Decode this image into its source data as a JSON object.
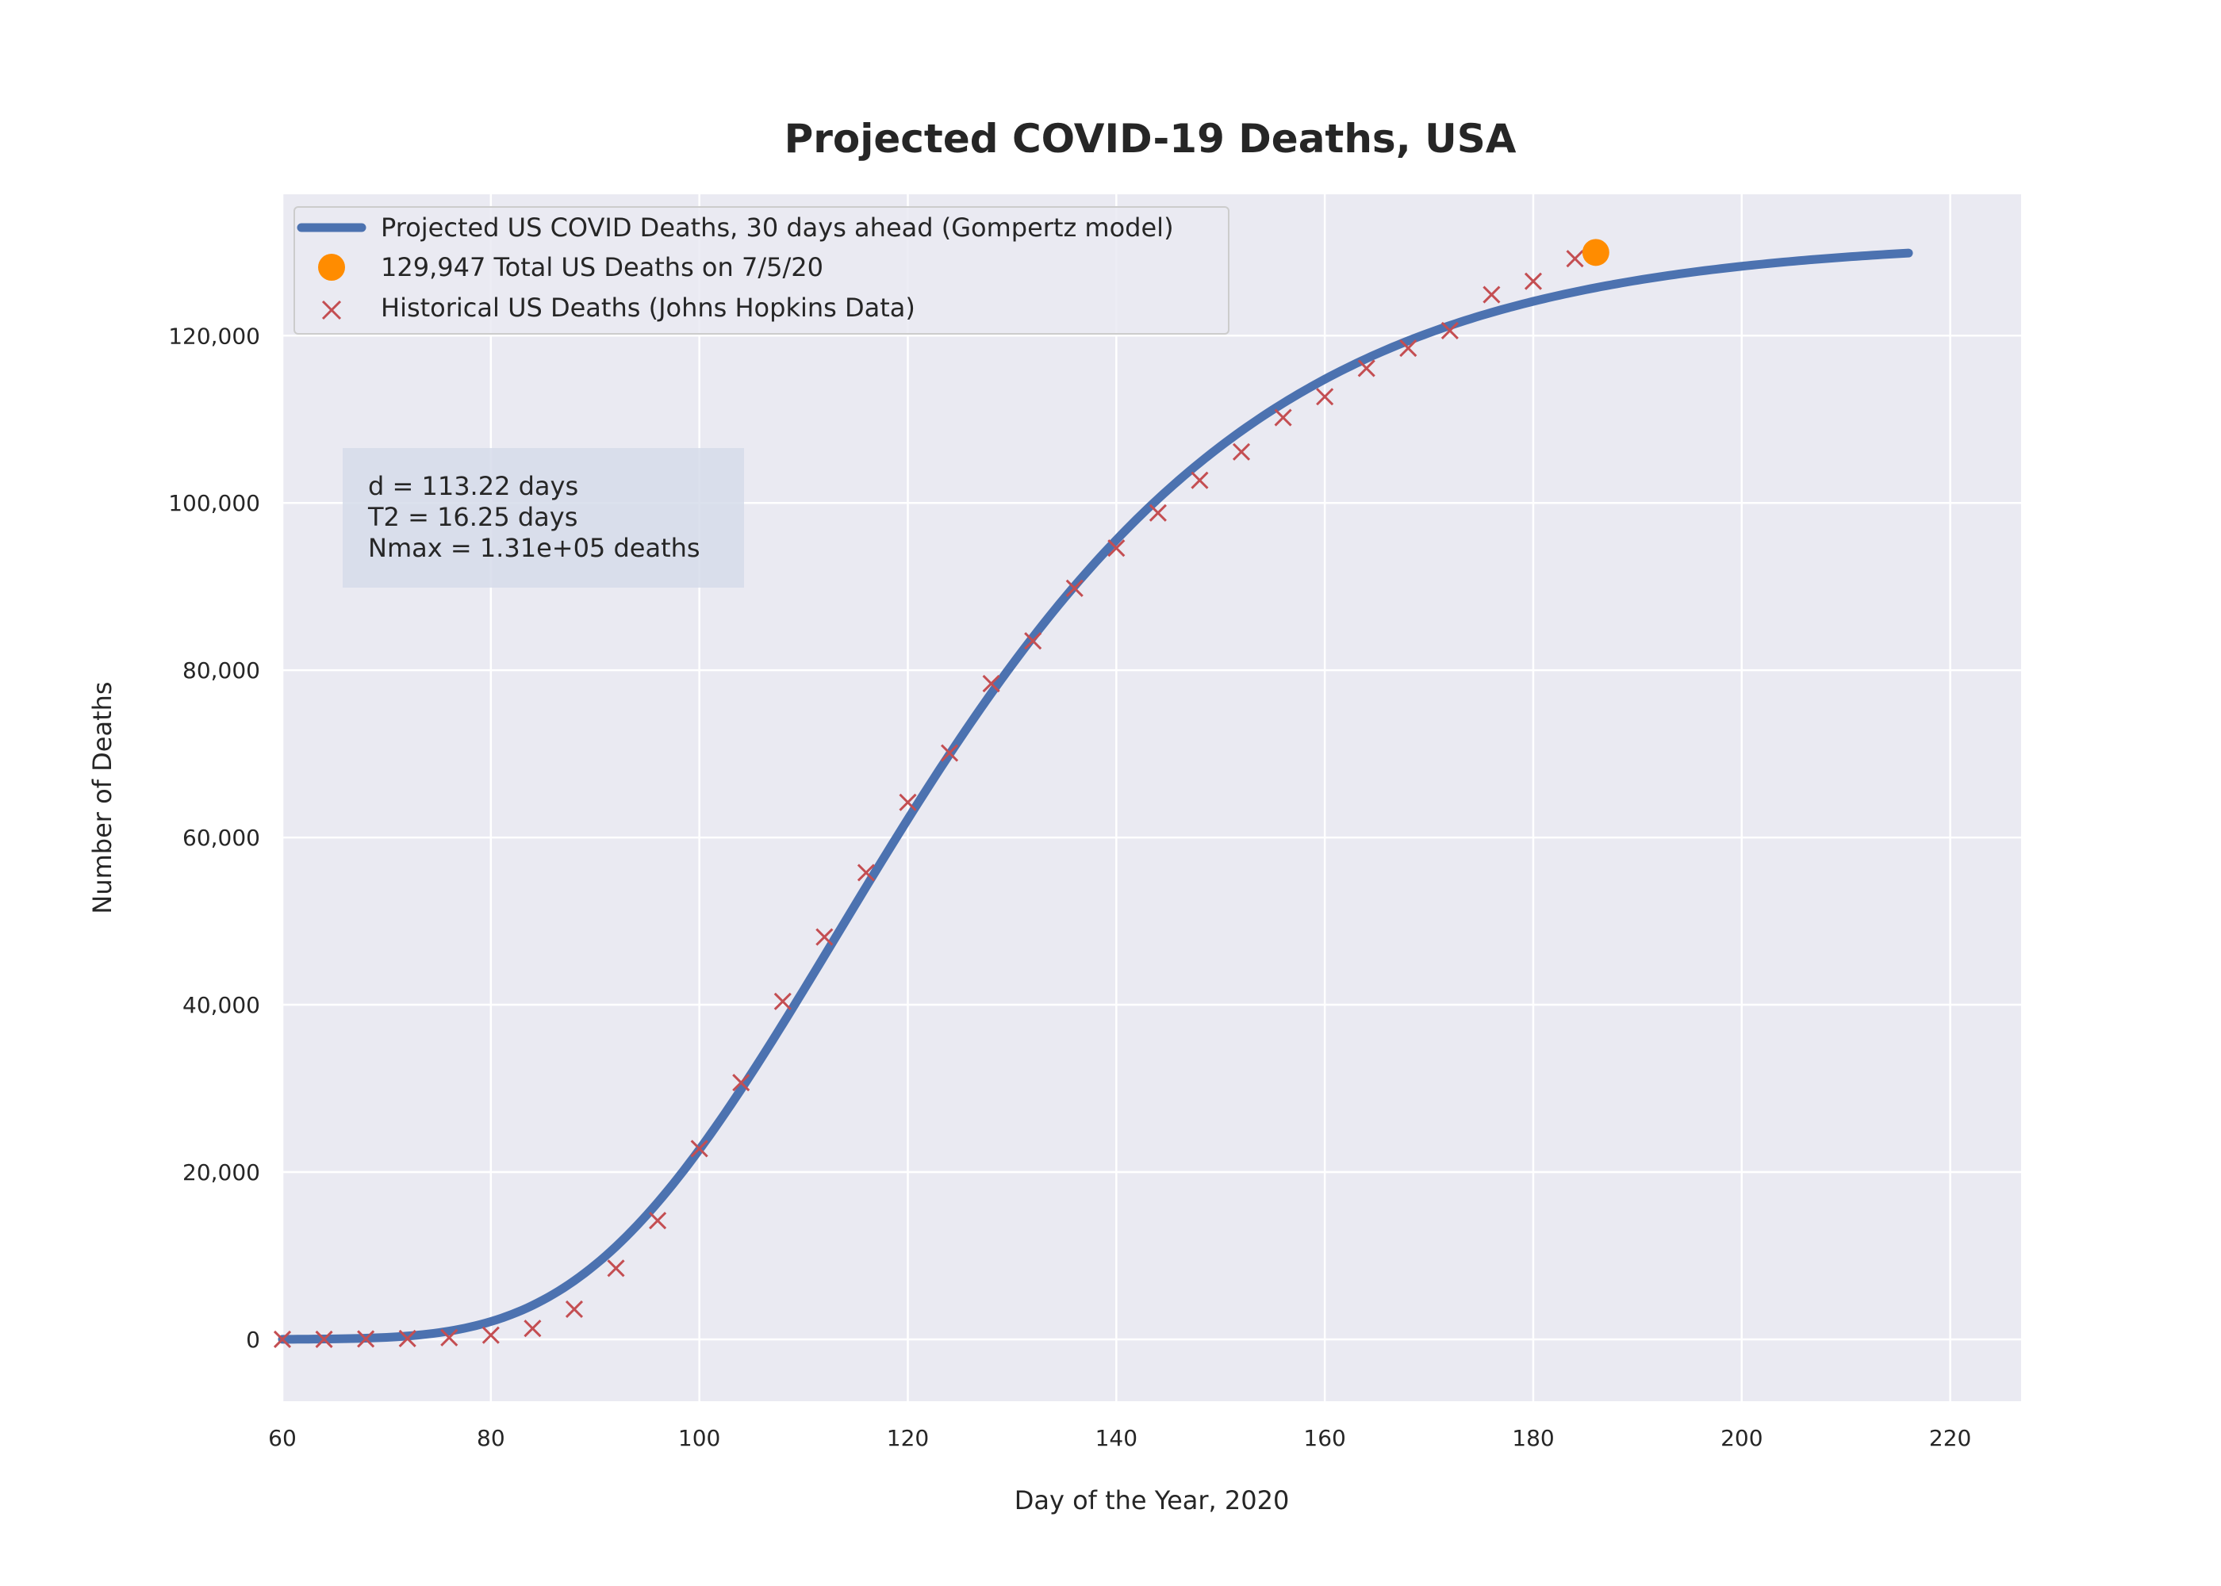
{
  "chart_data": {
    "type": "line",
    "title": "Projected COVID-19 Deaths, USA",
    "xlabel": "Day of the Year, 2020",
    "ylabel": "Number of Deaths",
    "xlim": [
      60,
      226.8
    ],
    "ylim": [
      -7400,
      136900
    ],
    "x_ticks": [
      60,
      80,
      100,
      120,
      140,
      160,
      180,
      200,
      220
    ],
    "y_ticks": [
      0,
      20000,
      40000,
      60000,
      80000,
      100000,
      120000
    ],
    "x_tick_labels": [
      "60",
      "80",
      "100",
      "120",
      "140",
      "160",
      "180",
      "200",
      "220"
    ],
    "y_tick_labels": [
      "0",
      "20,000",
      "40,000",
      "60,000",
      "80,000",
      "100,000",
      "120,000"
    ],
    "grid": true,
    "legend_position": "top-left",
    "colors": {
      "background": "#EAEAF2",
      "grid": "#FFFFFF",
      "projection": "#4C72B0",
      "current": "#FF8C00",
      "historical": "#C44E52"
    },
    "annotation": {
      "lines": [
        "d = 113.22 days",
        "T2 = 16.25 days",
        "Nmax = 1.31e+05 deaths"
      ],
      "position": "upper-left inside plot"
    },
    "series": [
      {
        "name": "Projected US COVID Deaths, 30 days ahead (Gompertz model)",
        "kind": "line",
        "color": "#4C72B0",
        "model": "gompertz",
        "params": {
          "Nmax": 131500,
          "d": 113.22,
          "T2": 16.25
        },
        "x_range": [
          60,
          216
        ]
      },
      {
        "name": "129,947 Total US Deaths on 7/5/20",
        "kind": "point",
        "color": "#FF8C00",
        "x": [
          186
        ],
        "y": [
          129947
        ]
      },
      {
        "name": "Historical US Deaths (Johns Hopkins Data)",
        "kind": "scatter",
        "marker": "x",
        "color": "#C44E52",
        "x": [
          60,
          64,
          68,
          72,
          76,
          80,
          84,
          88,
          92,
          96,
          100,
          104,
          108,
          112,
          116,
          120,
          124,
          128,
          132,
          136,
          140,
          144,
          148,
          152,
          156,
          160,
          164,
          168,
          172,
          176,
          180,
          184
        ],
        "y": [
          0,
          0,
          50,
          100,
          200,
          500,
          1300,
          3600,
          8500,
          14200,
          22800,
          30700,
          40400,
          48100,
          55800,
          64200,
          70100,
          78400,
          83500,
          89800,
          94600,
          98800,
          102700,
          106100,
          110200,
          112700,
          116100,
          118500,
          120600,
          124900,
          126500,
          129200
        ]
      }
    ]
  }
}
